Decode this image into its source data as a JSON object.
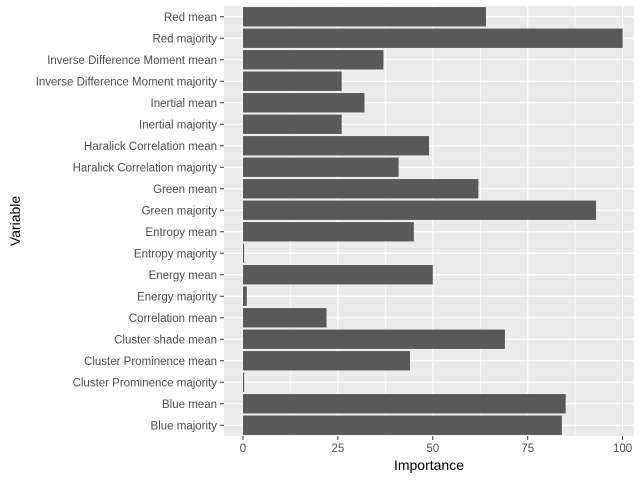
{
  "chart_data": {
    "type": "bar",
    "orientation": "horizontal",
    "xlabel": "Importance",
    "ylabel": "Variable",
    "xlim": [
      -5,
      103
    ],
    "x_ticks": [
      0,
      25,
      50,
      75,
      100
    ],
    "x_tick_labels": [
      "0",
      "25",
      "50",
      "75",
      "100"
    ],
    "grid": true,
    "legend": "none",
    "colors": {
      "bar": "#595959",
      "panel_background": "#ebebeb",
      "grid": "#ffffff",
      "tick_text": "#4d4d4d"
    },
    "categories": [
      "Red mean",
      "Red majority",
      "Inverse Difference Moment mean",
      "Inverse Difference Moment majority",
      "Inertial mean",
      "Inertial majority",
      "Haralick Correlation mean",
      "Haralick Correlation majority",
      "Green mean",
      "Green majority",
      "Entropy mean",
      "Entropy majority",
      "Energy mean",
      "Energy majority",
      "Correlation mean",
      "Cluster shade mean",
      "Cluster Prominence mean",
      "Cluster Prominence majority",
      "Blue mean",
      "Blue majority"
    ],
    "values": [
      64,
      100,
      37,
      26,
      32,
      26,
      49,
      41,
      62,
      93,
      45,
      0.3,
      50,
      1,
      22,
      69,
      44,
      0.3,
      85,
      84
    ]
  }
}
